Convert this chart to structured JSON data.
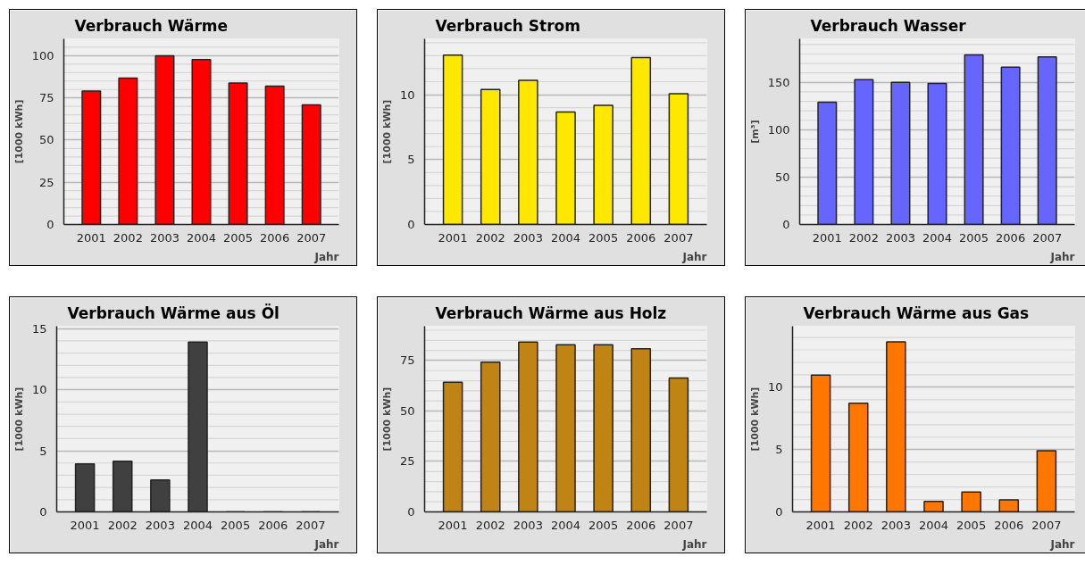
{
  "chart_data": [
    {
      "type": "bar",
      "title": "Verbrauch Wärme",
      "ylabel": "[1000 kWh]",
      "xlabel": "Jahr",
      "categories": [
        "2001",
        "2002",
        "2003",
        "2004",
        "2005",
        "2006",
        "2007"
      ],
      "values": [
        79,
        86.7,
        100,
        97.7,
        83.8,
        82,
        70.8
      ],
      "color": "#ff0000",
      "ylim": [
        0,
        110
      ],
      "yticks": [
        0,
        {
          "value": 5,
          "label": null
        },
        {
          "value": 10,
          "label": null
        },
        {
          "value": 15,
          "label": null
        },
        {
          "value": 20,
          "label": null
        },
        25,
        {
          "value": 30,
          "label": null
        },
        {
          "value": 35,
          "label": null
        },
        {
          "value": 40,
          "label": null
        },
        {
          "value": 45,
          "label": null
        },
        50,
        {
          "value": 55,
          "label": null
        },
        {
          "value": 60,
          "label": null
        },
        {
          "value": 65,
          "label": null
        },
        {
          "value": 70,
          "label": null
        },
        75,
        {
          "value": 80,
          "label": null
        },
        {
          "value": 85,
          "label": null
        },
        {
          "value": 90,
          "label": null
        },
        {
          "value": 95,
          "label": null
        },
        100,
        {
          "value": 105,
          "label": null
        }
      ],
      "grid": true
    },
    {
      "type": "bar",
      "title": "Verbrauch Strom",
      "ylabel": "[1000 kWh]",
      "xlabel": "Jahr",
      "categories": [
        "2001",
        "2002",
        "2003",
        "2004",
        "2005",
        "2006",
        "2007"
      ],
      "values": [
        13.05,
        10.4,
        11.1,
        8.67,
        9.17,
        12.85,
        10.08
      ],
      "color": "#ffe800",
      "ylim": [
        0,
        14.3
      ],
      "yticks": [
        0,
        {
          "value": 1,
          "label": null
        },
        {
          "value": 2,
          "label": null
        },
        {
          "value": 3,
          "label": null
        },
        {
          "value": 4,
          "label": null
        },
        5,
        {
          "value": 6,
          "label": null
        },
        {
          "value": 7,
          "label": null
        },
        {
          "value": 8,
          "label": null
        },
        {
          "value": 9,
          "label": null
        },
        10,
        {
          "value": 11,
          "label": null
        },
        {
          "value": 12,
          "label": null
        },
        {
          "value": 13,
          "label": null
        },
        {
          "value": 14,
          "label": null
        }
      ],
      "grid": true
    },
    {
      "type": "bar",
      "title": "Verbrauch Wasser",
      "ylabel": "[m³]",
      "xlabel": "Jahr",
      "categories": [
        "2001",
        "2002",
        "2003",
        "2004",
        "2005",
        "2006",
        "2007"
      ],
      "values": [
        129,
        153,
        150,
        149,
        179,
        166,
        177
      ],
      "color": "#6666ff",
      "ylim": [
        0,
        196
      ],
      "yticks": [
        0,
        {
          "value": 10,
          "label": null
        },
        {
          "value": 20,
          "label": null
        },
        {
          "value": 30,
          "label": null
        },
        {
          "value": 40,
          "label": null
        },
        50,
        {
          "value": 60,
          "label": null
        },
        {
          "value": 70,
          "label": null
        },
        {
          "value": 80,
          "label": null
        },
        {
          "value": 90,
          "label": null
        },
        100,
        {
          "value": 110,
          "label": null
        },
        {
          "value": 120,
          "label": null
        },
        {
          "value": 130,
          "label": null
        },
        {
          "value": 140,
          "label": null
        },
        150,
        {
          "value": 160,
          "label": null
        },
        {
          "value": 170,
          "label": null
        },
        {
          "value": 180,
          "label": null
        },
        {
          "value": 190,
          "label": null
        }
      ],
      "grid": true
    },
    {
      "type": "bar",
      "title": "Verbrauch Wärme aus Öl",
      "ylabel": "[1000 kWh]",
      "xlabel": "Jahr",
      "categories": [
        "2001",
        "2002",
        "2003",
        "2004",
        "2005",
        "2006",
        "2007"
      ],
      "values": [
        3.92,
        4.14,
        2.62,
        13.9,
        0,
        0,
        0
      ],
      "color": "#404040",
      "ylim": [
        0,
        15.2
      ],
      "yticks": [
        0,
        {
          "value": 1,
          "label": null
        },
        {
          "value": 2,
          "label": null
        },
        {
          "value": 3,
          "label": null
        },
        {
          "value": 4,
          "label": null
        },
        5,
        {
          "value": 6,
          "label": null
        },
        {
          "value": 7,
          "label": null
        },
        {
          "value": 8,
          "label": null
        },
        {
          "value": 9,
          "label": null
        },
        10,
        {
          "value": 11,
          "label": null
        },
        {
          "value": 12,
          "label": null
        },
        {
          "value": 13,
          "label": null
        },
        {
          "value": 14,
          "label": null
        },
        15
      ],
      "grid": true
    },
    {
      "type": "bar",
      "title": "Verbrauch Wärme aus Holz",
      "ylabel": "[1000 kWh]",
      "xlabel": "Jahr",
      "categories": [
        "2001",
        "2002",
        "2003",
        "2004",
        "2005",
        "2006",
        "2007"
      ],
      "values": [
        64.3,
        74.2,
        84.2,
        82.8,
        82.8,
        80.8,
        66.4
      ],
      "color": "#c08414",
      "ylim": [
        0,
        92
      ],
      "yticks": [
        0,
        {
          "value": 5,
          "label": null
        },
        {
          "value": 10,
          "label": null
        },
        {
          "value": 15,
          "label": null
        },
        {
          "value": 20,
          "label": null
        },
        25,
        {
          "value": 30,
          "label": null
        },
        {
          "value": 35,
          "label": null
        },
        {
          "value": 40,
          "label": null
        },
        {
          "value": 45,
          "label": null
        },
        50,
        {
          "value": 55,
          "label": null
        },
        {
          "value": 60,
          "label": null
        },
        {
          "value": 65,
          "label": null
        },
        {
          "value": 70,
          "label": null
        },
        75,
        {
          "value": 80,
          "label": null
        },
        {
          "value": 85,
          "label": null
        },
        {
          "value": 90,
          "label": null
        }
      ],
      "grid": true
    },
    {
      "type": "bar",
      "title": "Verbrauch Wärme aus Gas",
      "ylabel": "[1000 kWh]",
      "xlabel": "Jahr",
      "categories": [
        "2001",
        "2002",
        "2003",
        "2004",
        "2005",
        "2006",
        "2007"
      ],
      "values": [
        10.97,
        8.72,
        13.64,
        0.84,
        1.6,
        0.97,
        4.9
      ],
      "color": "#ff7700",
      "ylim": [
        0,
        14.9
      ],
      "yticks": [
        0,
        {
          "value": 1,
          "label": null
        },
        {
          "value": 2,
          "label": null
        },
        {
          "value": 3,
          "label": null
        },
        {
          "value": 4,
          "label": null
        },
        5,
        {
          "value": 6,
          "label": null
        },
        {
          "value": 7,
          "label": null
        },
        {
          "value": 8,
          "label": null
        },
        {
          "value": 9,
          "label": null
        },
        10,
        {
          "value": 11,
          "label": null
        },
        {
          "value": 12,
          "label": null
        },
        {
          "value": 13,
          "label": null
        },
        {
          "value": 14,
          "label": null
        }
      ],
      "grid": true
    }
  ]
}
